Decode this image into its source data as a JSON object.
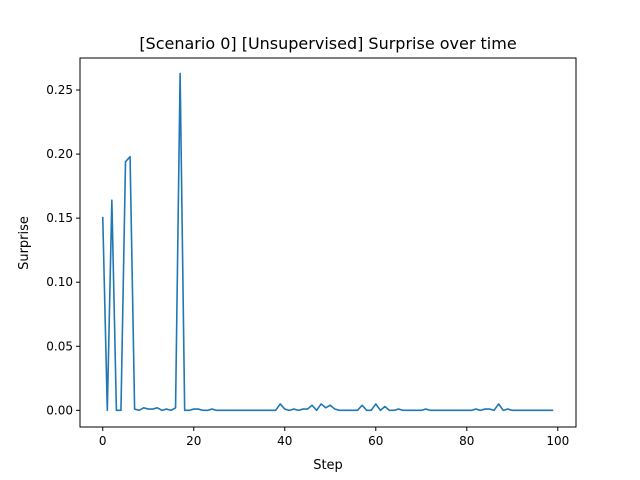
{
  "chart_data": {
    "type": "line",
    "title": "[Scenario 0] [Unsupervised] Surprise over time",
    "xlabel": "Step",
    "ylabel": "Surprise",
    "xlim": [
      -5,
      104
    ],
    "ylim": [
      -0.013,
      0.275
    ],
    "xticks": [
      0,
      20,
      40,
      60,
      80,
      100
    ],
    "xtick_labels": [
      "0",
      "20",
      "40",
      "60",
      "80",
      "100"
    ],
    "yticks": [
      0.0,
      0.05,
      0.1,
      0.15,
      0.2,
      0.25
    ],
    "ytick_labels": [
      "0.00",
      "0.05",
      "0.10",
      "0.15",
      "0.20",
      "0.25"
    ],
    "grid": false,
    "color": "#1f77b4",
    "series": [
      {
        "x": [
          0,
          1,
          2,
          3,
          4,
          5,
          6,
          7,
          8,
          9,
          10,
          11,
          12,
          13,
          14,
          15,
          16,
          17,
          18,
          19,
          20,
          21,
          22,
          23,
          24,
          25,
          26,
          27,
          28,
          29,
          30,
          31,
          32,
          33,
          34,
          35,
          36,
          37,
          38,
          39,
          40,
          41,
          42,
          43,
          44,
          45,
          46,
          47,
          48,
          49,
          50,
          51,
          52,
          53,
          54,
          55,
          56,
          57,
          58,
          59,
          60,
          61,
          62,
          63,
          64,
          65,
          66,
          67,
          68,
          69,
          70,
          71,
          72,
          73,
          74,
          75,
          76,
          77,
          78,
          79,
          80,
          81,
          82,
          83,
          84,
          85,
          86,
          87,
          88,
          89,
          90,
          91,
          92,
          93,
          94,
          95,
          96,
          97,
          98,
          99
        ],
        "values": [
          0.151,
          0.0,
          0.164,
          0.0,
          0.0,
          0.194,
          0.198,
          0.001,
          0.0,
          0.002,
          0.001,
          0.001,
          0.002,
          0.0,
          0.001,
          0.0,
          0.002,
          0.263,
          0.0,
          0.0,
          0.001,
          0.001,
          0.0,
          0.0,
          0.001,
          0.0,
          0.0,
          0.0,
          0.0,
          0.0,
          0.0,
          0.0,
          0.0,
          0.0,
          0.0,
          0.0,
          0.0,
          0.0,
          0.0,
          0.005,
          0.001,
          0.0,
          0.001,
          0.0,
          0.001,
          0.001,
          0.004,
          0.0,
          0.005,
          0.002,
          0.004,
          0.001,
          0.0,
          0.0,
          0.0,
          0.0,
          0.0,
          0.004,
          0.0,
          0.0,
          0.005,
          0.0,
          0.003,
          0.0,
          0.0,
          0.001,
          0.0,
          0.0,
          0.0,
          0.0,
          0.0,
          0.001,
          0.0,
          0.0,
          0.0,
          0.0,
          0.0,
          0.0,
          0.0,
          0.0,
          0.0,
          0.0,
          0.001,
          0.0,
          0.001,
          0.001,
          0.0,
          0.005,
          0.0,
          0.001,
          0.0,
          0.0,
          0.0,
          0.0,
          0.0,
          0.0,
          0.0,
          0.0,
          0.0,
          0.0
        ]
      }
    ]
  }
}
